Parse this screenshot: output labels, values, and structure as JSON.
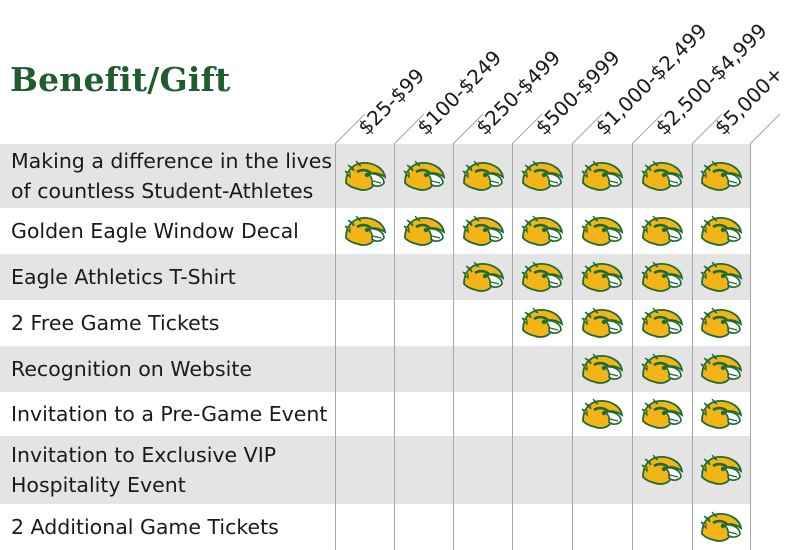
{
  "title": "Benefit/Gift",
  "columns": [
    "$25-$99",
    "$100-$249",
    "$250-$499",
    "$500-$999",
    "$1,000-$2,499",
    "$2,500-$4,999",
    "$5,000+"
  ],
  "icon": "golden-eagle-icon",
  "colors": {
    "title_green": "#1f5c2e",
    "row_shade": "#e4e4e4",
    "eagle_gold": "#f2b417",
    "eagle_green": "#1d6b32"
  },
  "rows": [
    {
      "lines": [
        "Making a difference in the lives",
        "of countless Student-Athletes"
      ],
      "first_tier": 0
    },
    {
      "lines": [
        "Golden Eagle Window Decal"
      ],
      "first_tier": 0
    },
    {
      "lines": [
        "Eagle Athletics T-Shirt"
      ],
      "first_tier": 2
    },
    {
      "lines": [
        "2 Free Game Tickets"
      ],
      "first_tier": 3
    },
    {
      "lines": [
        "Recognition on Website"
      ],
      "first_tier": 4
    },
    {
      "lines": [
        "Invitation to a Pre-Game Event"
      ],
      "first_tier": 4
    },
    {
      "lines": [
        "Invitation to Exclusive VIP",
        "Hospitality Event"
      ],
      "first_tier": 5
    },
    {
      "lines": [
        "2 Additional Game Tickets"
      ],
      "first_tier": 6
    }
  ]
}
